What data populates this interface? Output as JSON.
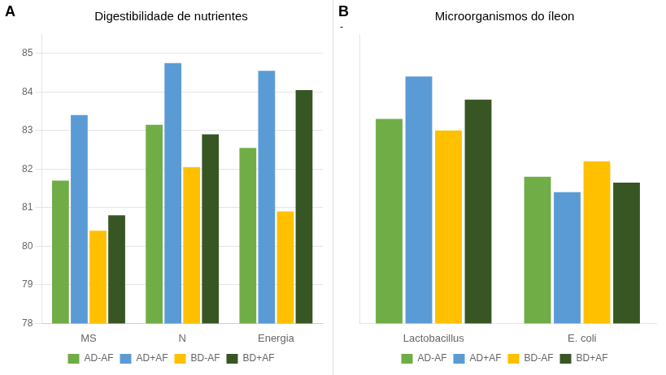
{
  "chart_data": [
    {
      "type": "bar",
      "title": "Digestibilidade de nutrientes",
      "annotations": [
        "A"
      ],
      "categories": [
        "MS",
        "N",
        "Energia"
      ],
      "series": [
        {
          "name": "AD-AF",
          "color": "#70AD47",
          "values": [
            81.7,
            83.15,
            82.55
          ]
        },
        {
          "name": "AD+AF",
          "color": "#5B9BD5",
          "values": [
            83.4,
            84.75,
            84.55
          ]
        },
        {
          "name": "BD-AF",
          "color": "#FFC000",
          "values": [
            80.4,
            82.05,
            80.9
          ]
        },
        {
          "name": "BD+AF",
          "color": "#375623",
          "values": [
            80.8,
            82.9,
            84.05
          ]
        }
      ],
      "ylim": [
        78,
        85.5
      ],
      "yticks": [
        78,
        79,
        80,
        81,
        82,
        83,
        84,
        85
      ],
      "grid": true,
      "legend": "bottom"
    },
    {
      "type": "bar",
      "title": "Microorganismos do íleon",
      "annotations": [
        "B",
        "-"
      ],
      "categories": [
        "Lactobacillus",
        "E. coli"
      ],
      "series": [
        {
          "name": "AD-AF",
          "color": "#70AD47",
          "values": [
            83.3,
            81.8
          ]
        },
        {
          "name": "AD+AF",
          "color": "#5B9BD5",
          "values": [
            84.4,
            81.4
          ]
        },
        {
          "name": "BD-AF",
          "color": "#FFC000",
          "values": [
            83.0,
            82.2
          ]
        },
        {
          "name": "BD+AF",
          "color": "#375623",
          "values": [
            83.8,
            81.65
          ]
        }
      ],
      "ylim": [
        78,
        85.5
      ],
      "grid": false,
      "legend": "bottom",
      "tick_labels": "x"
    }
  ]
}
